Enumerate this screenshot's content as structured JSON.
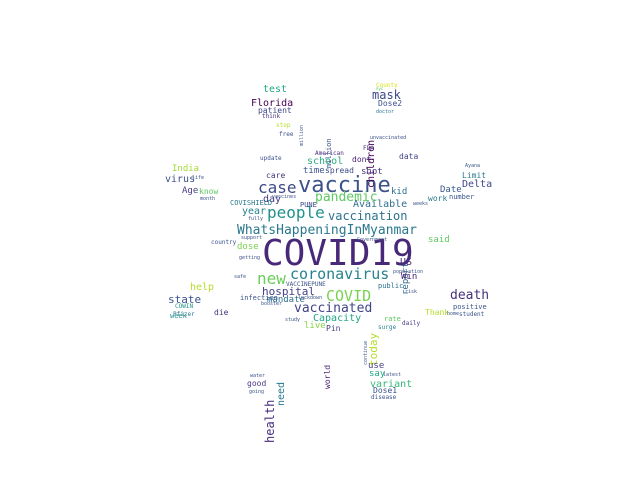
{
  "words": [
    {
      "text": "COVID19",
      "color": "#482878"
    },
    {
      "text": "vaccine",
      "color": "#3b528b"
    },
    {
      "text": "people",
      "color": "#21918c"
    },
    {
      "text": "case",
      "color": "#3e4a89"
    },
    {
      "text": "coronavirus",
      "color": "#26828e"
    },
    {
      "text": "WhatsHappeningInMyanmar",
      "color": "#2a788e"
    },
    {
      "text": "new",
      "color": "#6ccd5a"
    },
    {
      "text": "COVID",
      "color": "#7ad151"
    },
    {
      "text": "vaccination",
      "color": "#2c728e"
    },
    {
      "text": "vaccinated",
      "color": "#414487"
    },
    {
      "text": "pandemic",
      "color": "#5ec962"
    },
    {
      "text": "death",
      "color": "#46327e"
    },
    {
      "text": "health",
      "color": "#472d7b"
    },
    {
      "text": "hospital",
      "color": "#433e85"
    },
    {
      "text": "mask",
      "color": "#3e4989"
    },
    {
      "text": "children",
      "color": "#440154"
    },
    {
      "text": "state",
      "color": "#3b528b"
    },
    {
      "text": "Capacity",
      "color": "#21a685"
    },
    {
      "text": "today",
      "color": "#b5de2b"
    },
    {
      "text": "Available",
      "color": "#2e6e8e"
    },
    {
      "text": "variant",
      "color": "#35b779"
    },
    {
      "text": "Delta",
      "color": "#3f4788"
    },
    {
      "text": "school",
      "color": "#29af7f"
    },
    {
      "text": "test",
      "color": "#22a884"
    },
    {
      "text": "Florida",
      "color": "#440154"
    },
    {
      "text": "virus",
      "color": "#3b528b"
    },
    {
      "text": "Age",
      "color": "#433e85"
    },
    {
      "text": "year",
      "color": "#26828e"
    },
    {
      "text": "day",
      "color": "#443983"
    },
    {
      "text": "dose",
      "color": "#7ad151"
    },
    {
      "text": "need",
      "color": "#2a788e"
    },
    {
      "text": "help",
      "color": "#b5de2b"
    },
    {
      "text": "time",
      "color": "#3b528b"
    },
    {
      "text": "report",
      "color": "#31688e"
    },
    {
      "text": "US",
      "color": "#472f7d"
    },
    {
      "text": "Date",
      "color": "#38598c"
    },
    {
      "text": "said",
      "color": "#5ec962"
    },
    {
      "text": "live",
      "color": "#86d549"
    },
    {
      "text": "mandate",
      "color": "#2d708e"
    },
    {
      "text": "Win",
      "color": "#482475"
    },
    {
      "text": "spread",
      "color": "#3e4a89"
    },
    {
      "text": "shot",
      "color": "#453781"
    },
    {
      "text": "kid",
      "color": "#2d708e"
    },
    {
      "text": "dont",
      "color": "#482475"
    },
    {
      "text": "care",
      "color": "#46337f"
    },
    {
      "text": "data",
      "color": "#414487"
    },
    {
      "text": "Dose2",
      "color": "#3b528b"
    },
    {
      "text": "patient",
      "color": "#414487"
    },
    {
      "text": "India",
      "color": "#a2da37"
    },
    {
      "text": "know",
      "color": "#5ec962"
    },
    {
      "text": "work",
      "color": "#2a788e"
    },
    {
      "text": "Limit",
      "color": "#2a788e"
    },
    {
      "text": "number",
      "color": "#3b528b"
    },
    {
      "text": "COVISHIELD",
      "color": "#2a788e"
    },
    {
      "text": "PUNE",
      "color": "#3e4a89"
    },
    {
      "text": "infection",
      "color": "#3b528b"
    },
    {
      "text": "die",
      "color": "#46327e"
    },
    {
      "text": "Pin",
      "color": "#433e85"
    },
    {
      "text": "public",
      "color": "#2d708e"
    },
    {
      "text": "rate",
      "color": "#5ec962"
    },
    {
      "text": "positive",
      "color": "#3b528b"
    },
    {
      "text": "Thank",
      "color": "#b5de2b"
    },
    {
      "text": "VACCINEPUNE",
      "color": "#3b528b"
    },
    {
      "text": "week",
      "color": "#21918c"
    },
    {
      "text": "COWIN",
      "color": "#21918c"
    },
    {
      "text": "world",
      "color": "#482878"
    },
    {
      "text": "use",
      "color": "#433e85"
    },
    {
      "text": "say",
      "color": "#22a884"
    },
    {
      "text": "good",
      "color": "#443983"
    },
    {
      "text": "Dose1",
      "color": "#3b528b"
    },
    {
      "text": "disease",
      "color": "#3b528b"
    },
    {
      "text": "daily",
      "color": "#443983"
    },
    {
      "text": "student",
      "color": "#3b528b"
    },
    {
      "text": "Pfizer",
      "color": "#2a788e"
    },
    {
      "text": "surge",
      "color": "#26828e"
    },
    {
      "text": "American",
      "color": "#472c7a"
    },
    {
      "text": "FDA",
      "color": "#472d7b"
    },
    {
      "text": "update",
      "color": "#3b528b"
    },
    {
      "text": "think",
      "color": "#46327e"
    },
    {
      "text": "free",
      "color": "#3b528b"
    },
    {
      "text": "million",
      "color": "#3b528b"
    },
    {
      "text": "County",
      "color": "#d8e219"
    },
    {
      "text": "doctor",
      "color": "#2a788e"
    },
    {
      "text": "unvaccinated",
      "color": "#3b528b"
    },
    {
      "text": "country",
      "color": "#3b528b"
    },
    {
      "text": "support",
      "color": "#3b528b"
    },
    {
      "text": "getting",
      "color": "#3b528b"
    },
    {
      "text": "safe",
      "color": "#3b528b"
    },
    {
      "text": "lockdown",
      "color": "#3b528b"
    },
    {
      "text": "booster",
      "color": "#3b528b"
    },
    {
      "text": "study",
      "color": "#3b528b"
    },
    {
      "text": "going",
      "color": "#3b528b"
    },
    {
      "text": "water",
      "color": "#3b528b"
    },
    {
      "text": "latest",
      "color": "#3b528b"
    },
    {
      "text": "home",
      "color": "#3b528b"
    },
    {
      "text": "life",
      "color": "#3b528b"
    },
    {
      "text": "month",
      "color": "#3b528b"
    },
    {
      "text": "Government",
      "color": "#3b528b"
    },
    {
      "text": "continue",
      "color": "#3b528b"
    },
    {
      "text": "fully",
      "color": "#3b528b"
    },
    {
      "text": "population",
      "color": "#3b528b"
    },
    {
      "text": "stop",
      "color": "#b5de2b"
    },
    {
      "text": "vaccines",
      "color": "#3b528b"
    },
    {
      "text": "weeks",
      "color": "#3b528b"
    },
    {
      "text": "million",
      "color": "#3b528b"
    },
    {
      "text": "nyc",
      "color": "#5ec962"
    },
    {
      "text": "Ayana",
      "color": "#3b528b"
    },
    {
      "text": "risk",
      "color": "#3b528b"
    }
  ]
}
